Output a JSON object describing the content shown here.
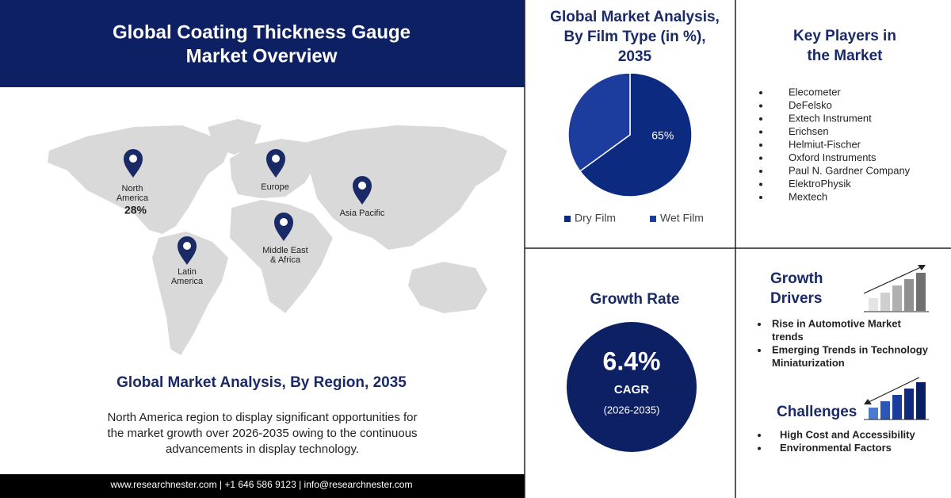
{
  "header": {
    "title": [
      "Global Coating Thickness Gauge",
      "Market Overview"
    ]
  },
  "map": {
    "pins": [
      {
        "name": [
          "North",
          "America"
        ],
        "share": "28%"
      },
      {
        "name": [
          "Europe"
        ]
      },
      {
        "name": [
          "Asia Pacific"
        ]
      },
      {
        "name": [
          "Middle East",
          "& Africa"
        ]
      },
      {
        "name": [
          "Latin",
          "America"
        ]
      }
    ]
  },
  "region": {
    "title": "Global Market Analysis, By Region, 2035",
    "text": [
      "North America region to display significant opportunities for",
      "the market growth over 2026-2035 owing to the continuous",
      "advancements in display technology."
    ]
  },
  "footer": "www.researchnester.com | +1 646 586 9123 | info@researchnester.com",
  "chart_data": {
    "type": "pie",
    "title": [
      "Global Market Analysis,",
      "By Film Type (in %),",
      "2035"
    ],
    "categories": [
      "Dry Film",
      "Wet Film"
    ],
    "values": [
      65,
      35
    ],
    "value_labels": [
      "65%",
      null
    ],
    "colors": [
      "#0c2a80",
      "#1d3d9e"
    ]
  },
  "growth": {
    "title": "Growth Rate",
    "cagr": "6.4%",
    "label": "CAGR",
    "period": "(2026-2035)"
  },
  "key_players": {
    "title": [
      "Key Players in",
      "the Market"
    ],
    "items": [
      "Elecometer",
      "DeFelsko",
      "Extech Instrument",
      "Erichsen",
      "Helmiut-Fischer",
      "Oxford Instruments",
      "Paul N. Gardner Company",
      "ElektroPhysik",
      "Mextech"
    ]
  },
  "drivers": {
    "title": [
      "Growth",
      "Drivers"
    ],
    "items": [
      [
        "Rise in Automotive Market",
        "trends"
      ],
      [
        "Emerging Trends in Technology",
        "Miniaturization"
      ]
    ]
  },
  "challenges": {
    "title": "Challenges",
    "items": [
      "High Cost and Accessibility",
      "Environmental Factors"
    ]
  }
}
